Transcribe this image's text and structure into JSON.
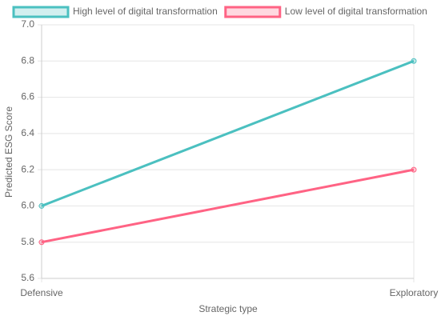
{
  "chart_data": {
    "type": "line",
    "categories": [
      "Defensive",
      "Exploratory"
    ],
    "series": [
      {
        "name": "High level of digital transformation",
        "color": "#4bc0c0",
        "values": [
          6.0,
          6.8
        ]
      },
      {
        "name": "Low level of digital transformation",
        "color": "#ff6384",
        "values": [
          5.8,
          6.2
        ]
      }
    ],
    "x_label": "Strategic type",
    "y_label": "Predicted ESG Score",
    "ylim": [
      5.6,
      7.0
    ],
    "yticks": [
      5.6,
      5.8,
      {
        "value": 6.0,
        "label": "6.0"
      },
      6.2,
      6.4,
      6.6,
      6.8,
      {
        "value": 7.0,
        "label": "7.0"
      }
    ],
    "grid": true
  }
}
